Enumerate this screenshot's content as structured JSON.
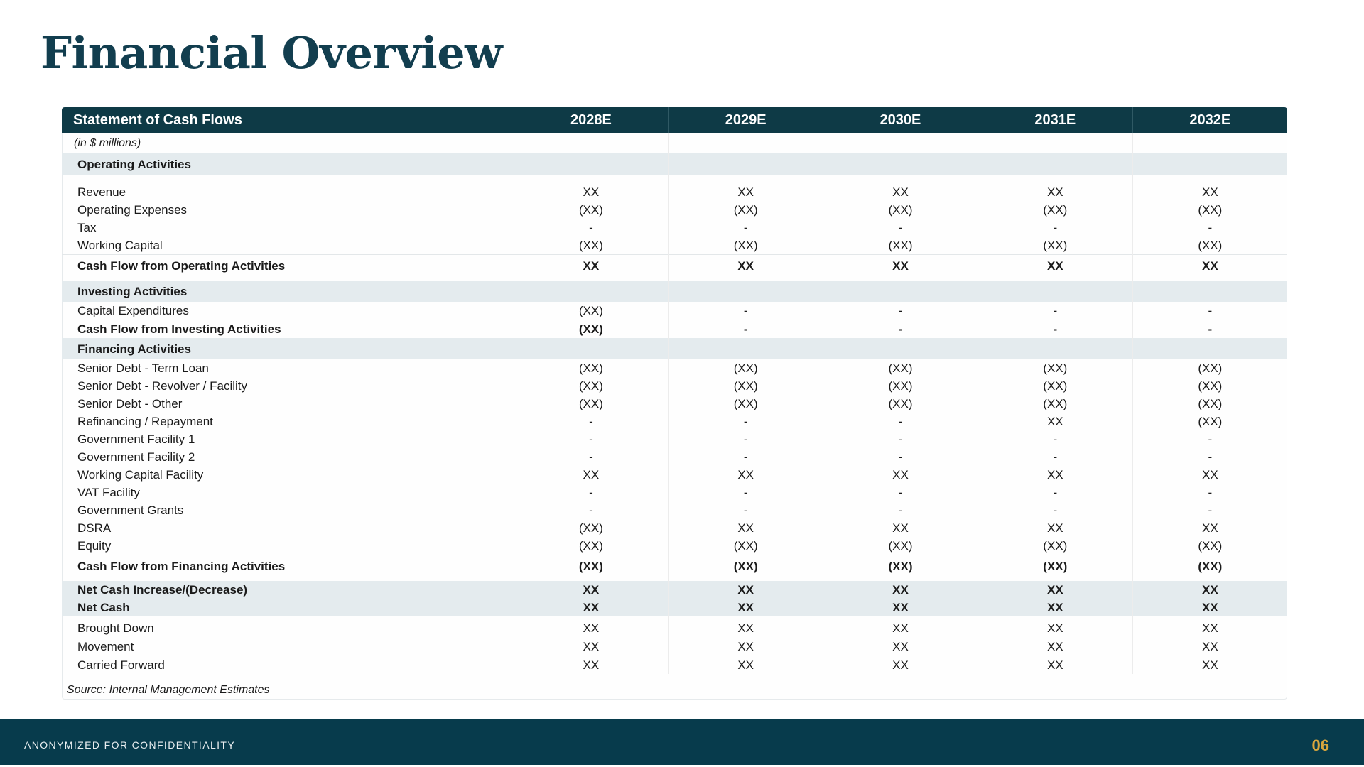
{
  "title": "Financial Overview",
  "table": {
    "header_label": "Statement of Cash Flows",
    "years": [
      "2028E",
      "2029E",
      "2030E",
      "2031E",
      "2032E"
    ],
    "units": "(in $ millions)",
    "operating": {
      "heading": "Operating Activities",
      "rows": [
        {
          "label": "Revenue",
          "values": [
            "XX",
            "XX",
            "XX",
            "XX",
            "XX"
          ]
        },
        {
          "label": "Operating Expenses",
          "values": [
            "(XX)",
            "(XX)",
            "(XX)",
            "(XX)",
            "(XX)"
          ]
        },
        {
          "label": "Tax",
          "values": [
            "-",
            "-",
            "-",
            "-",
            "-"
          ]
        },
        {
          "label": "Working Capital",
          "values": [
            "(XX)",
            "(XX)",
            "(XX)",
            "(XX)",
            "(XX)"
          ]
        }
      ],
      "subtotal": {
        "label": "Cash Flow from Operating Activities",
        "values": [
          "XX",
          "XX",
          "XX",
          "XX",
          "XX"
        ]
      }
    },
    "investing": {
      "heading": "Investing Activities",
      "rows": [
        {
          "label": "Capital Expenditures",
          "values": [
            "(XX)",
            "-",
            "-",
            "-",
            "-"
          ]
        }
      ],
      "subtotal": {
        "label": "Cash Flow from Investing Activities",
        "values": [
          "(XX)",
          "-",
          "-",
          "-",
          "-"
        ]
      }
    },
    "financing": {
      "heading": "Financing Activities",
      "rows": [
        {
          "label": "Senior Debt - Term Loan",
          "values": [
            "(XX)",
            "(XX)",
            "(XX)",
            "(XX)",
            "(XX)"
          ]
        },
        {
          "label": "Senior Debt - Revolver / Facility",
          "values": [
            "(XX)",
            "(XX)",
            "(XX)",
            "(XX)",
            "(XX)"
          ]
        },
        {
          "label": "Senior Debt - Other",
          "values": [
            "(XX)",
            "(XX)",
            "(XX)",
            "(XX)",
            "(XX)"
          ]
        },
        {
          "label": "Refinancing / Repayment",
          "values": [
            "-",
            "-",
            "-",
            "XX",
            "(XX)"
          ]
        },
        {
          "label": "Government Facility 1",
          "values": [
            "-",
            "-",
            "-",
            "-",
            "-"
          ]
        },
        {
          "label": "Government Facility 2",
          "values": [
            "-",
            "-",
            "-",
            "-",
            "-"
          ]
        },
        {
          "label": "Working Capital Facility",
          "values": [
            "XX",
            "XX",
            "XX",
            "XX",
            "XX"
          ]
        },
        {
          "label": "VAT Facility",
          "values": [
            "-",
            "-",
            "-",
            "-",
            "-"
          ]
        },
        {
          "label": "Government Grants",
          "values": [
            "-",
            "-",
            "-",
            "-",
            "-"
          ]
        },
        {
          "label": "DSRA",
          "values": [
            "(XX)",
            "XX",
            "XX",
            "XX",
            "XX"
          ]
        },
        {
          "label": "Equity",
          "values": [
            "(XX)",
            "(XX)",
            "(XX)",
            "(XX)",
            "(XX)"
          ]
        }
      ],
      "subtotal": {
        "label": "Cash Flow from Financing Activities",
        "values": [
          "(XX)",
          "(XX)",
          "(XX)",
          "(XX)",
          "(XX)"
        ]
      }
    },
    "net": [
      {
        "label": "Net Cash Increase/(Decrease)",
        "values": [
          "XX",
          "XX",
          "XX",
          "XX",
          "XX"
        ]
      },
      {
        "label": "Net Cash",
        "values": [
          "XX",
          "XX",
          "XX",
          "XX",
          "XX"
        ]
      }
    ],
    "balance": [
      {
        "label": "Brought Down",
        "values": [
          "XX",
          "XX",
          "XX",
          "XX",
          "XX"
        ]
      },
      {
        "label": "Movement",
        "values": [
          "XX",
          "XX",
          "XX",
          "XX",
          "XX"
        ]
      },
      {
        "label": "Carried Forward",
        "values": [
          "XX",
          "XX",
          "XX",
          "XX",
          "XX"
        ]
      }
    ],
    "source": "Source: Internal Management Estimates"
  },
  "footer": {
    "text": "ANONYMIZED FOR CONFIDENTIALITY",
    "page_number": "06",
    "background": "#073b4c",
    "page_number_color": "#d9a63d"
  },
  "colors": {
    "title": "#123e4f",
    "header_bg": "#0e3a46",
    "section_bg": "#e4ebee"
  }
}
